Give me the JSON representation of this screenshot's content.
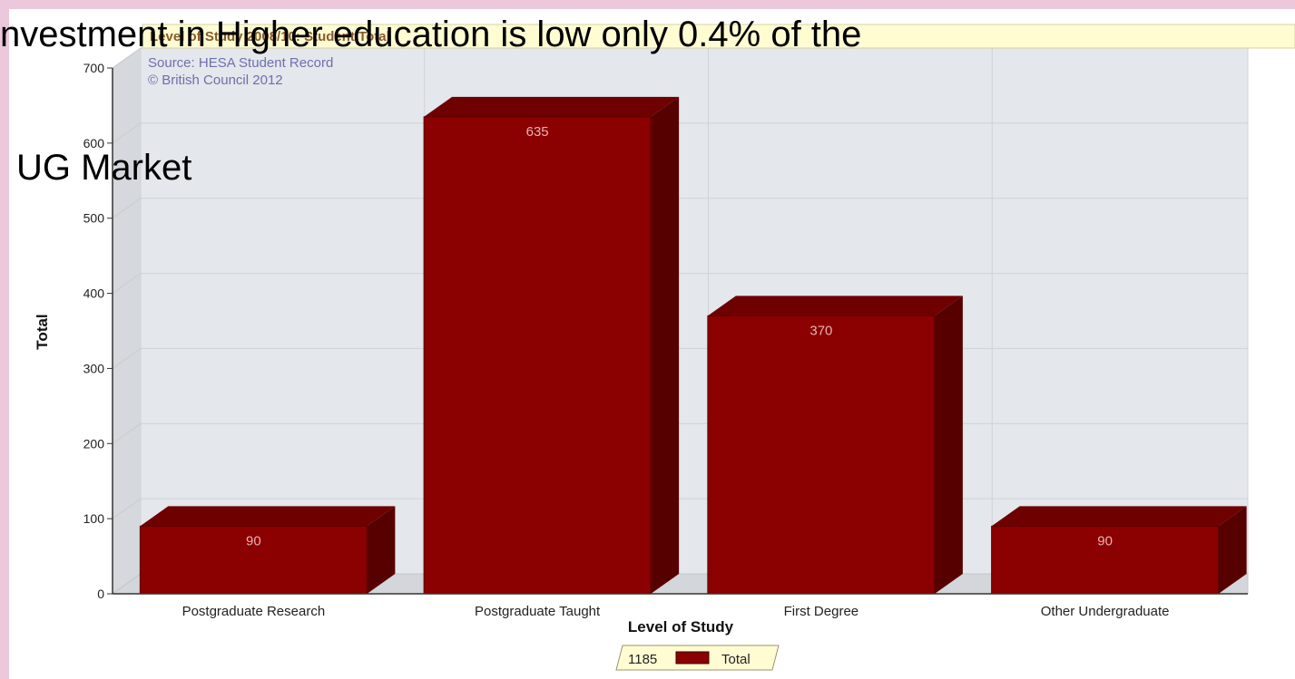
{
  "slide": {
    "title_line1": "nvestment in Higher education is low only 0.4% of the",
    "title_line2": "UG Market"
  },
  "colors": {
    "bar_front": "#8b0000",
    "bar_top": "#6e0000",
    "bar_side": "#560000",
    "plot_bg": "#e4e7eb",
    "title_band": "#fffcd2",
    "slide_border": "#ecc8dc"
  },
  "chart_data": {
    "type": "bar",
    "title": "Level of Study 2008/10: Student Total",
    "credits": [
      "Source: HESA Student Record",
      "© British Council 2012"
    ],
    "xlabel": "Level of Study",
    "ylabel": "Total",
    "categories": [
      "Postgraduate Research",
      "Postgraduate Taught",
      "First Degree",
      "Other Undergraduate"
    ],
    "series": [
      {
        "name": "Total",
        "values": [
          90,
          635,
          370,
          90
        ]
      }
    ],
    "ylim": [
      0,
      700
    ],
    "yticks": [
      0,
      100,
      200,
      300,
      400,
      500,
      600,
      700
    ],
    "grid": true,
    "three_d": true,
    "legend": {
      "position": "bottom",
      "total_label": "1185",
      "series_label": "Total"
    }
  }
}
